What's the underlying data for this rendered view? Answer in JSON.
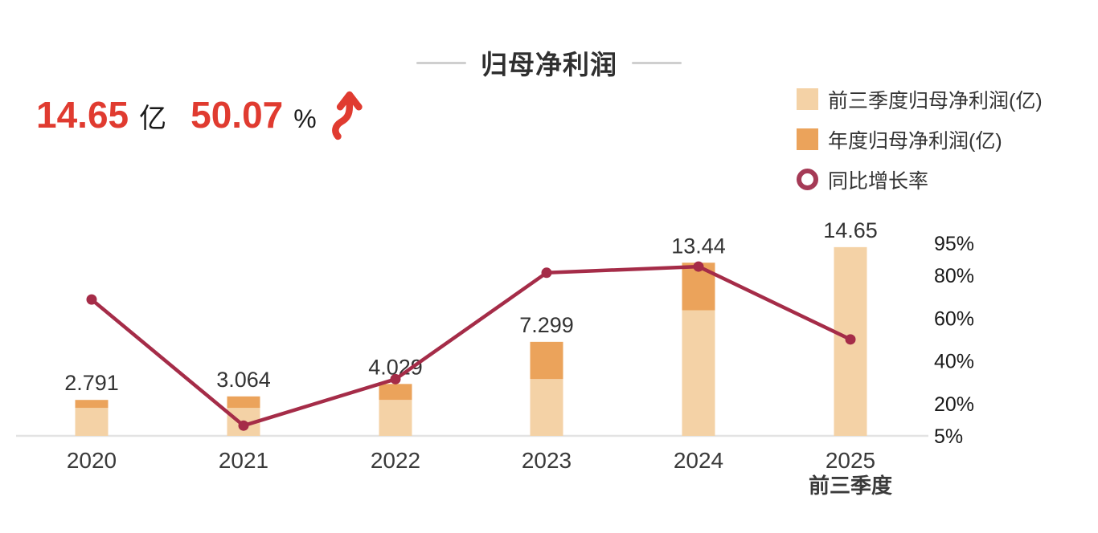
{
  "title": "归母净利润",
  "headline": {
    "value": "14.65",
    "unit": "亿",
    "growth": "50.07",
    "growth_unit": "%",
    "trend_icon": "up-arrow",
    "accent_color": "#e03b30"
  },
  "legend": {
    "position": "top-right",
    "items": [
      {
        "label": "前三季度归母净利润(亿)",
        "swatch": "square",
        "color": "#f4d2a6"
      },
      {
        "label": "年度归母净利润(亿)",
        "swatch": "square",
        "color": "#eba35b"
      },
      {
        "label": "同比增长率",
        "swatch": "ring",
        "color": "#a53a56"
      }
    ]
  },
  "chart_data": {
    "type": "bar",
    "subtype": "stacked-bar-with-growth-line",
    "categories": [
      "2020",
      "2021",
      "2022",
      "2023",
      "2024",
      "2025"
    ],
    "category_sublabels": [
      "",
      "",
      "",
      "",
      "",
      "前三季度"
    ],
    "bar_total_labels": [
      "2.791",
      "3.064",
      "4.029",
      "7.299",
      "13.44",
      "14.65"
    ],
    "series": [
      {
        "name": "前三季度归母净利润(亿)",
        "type": "bar",
        "color": "#f4d2a6",
        "values": [
          2.17,
          2.17,
          2.79,
          4.41,
          9.75,
          14.65
        ]
      },
      {
        "name": "年度归母净利润(亿)",
        "type": "bar",
        "color": "#eba35b",
        "values": [
          2.791,
          3.064,
          4.029,
          7.299,
          13.44,
          null
        ]
      },
      {
        "name": "同比增长率",
        "type": "line",
        "unit": "%",
        "color": "#a52c48",
        "values": [
          68.7,
          9.8,
          31.5,
          81.2,
          84.1,
          50.07
        ]
      }
    ],
    "right_axis": {
      "tick_labels": [
        "95%",
        "80%",
        "60%",
        "40%",
        "20%",
        "5%"
      ],
      "tick_values": [
        95,
        80,
        60,
        40,
        20,
        5
      ],
      "range": [
        5,
        95
      ]
    },
    "ylabel": "",
    "xlabel": "",
    "grid": false,
    "baseline_color": "#e3e3e3",
    "label_color": "#333333"
  }
}
